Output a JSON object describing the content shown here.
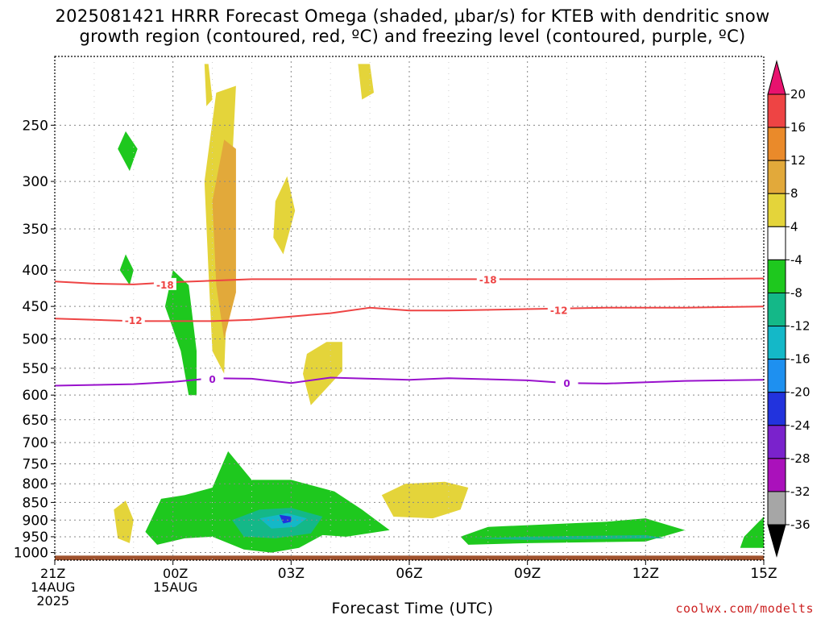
{
  "title": {
    "line1": "2025081421 HRRR Forecast Omega (shaded, μbar/s) for KTEB with dendritic snow",
    "line2": "growth region (contoured, red, ºC) and freezing level (contoured, purple, ºC)"
  },
  "xlabel": "Forecast Time (UTC)",
  "credit": "coolwx.com/modelts",
  "x_date_labels": {
    "start_time": "21Z",
    "start_date": "14AUG",
    "start_year": "2025",
    "midnight_time": "00Z",
    "midnight_date": "15AUG"
  },
  "colors": {
    "dendritic_contour": "#ee4444",
    "freezing_contour": "#9911cc",
    "ground": "#a0522d",
    "grid": "#888888"
  },
  "colorbar": {
    "labels": [
      "20",
      "16",
      "12",
      "8",
      "4",
      "-4",
      "-8",
      "-12",
      "-16",
      "-20",
      "-24",
      "-28",
      "-32",
      "-36"
    ],
    "colors": [
      "#e8126e",
      "#ee4444",
      "#ea8a2a",
      "#e2a93a",
      "#e4d43a",
      "#ffffff",
      "#1ec81e",
      "#14b888",
      "#14b8c8",
      "#1e90f0",
      "#2233dd",
      "#7a22cc",
      "#aa11bb",
      "#a6a6a6",
      "#000000"
    ]
  },
  "chart_data": {
    "type": "heatmap",
    "title": "2025081421 HRRR Forecast Omega (shaded, μbar/s) for KTEB with dendritic snow growth region (contoured, red, ºC) and freezing level (contoured, purple, ºC)",
    "xlabel": "Forecast Time (UTC)",
    "ylabel": "",
    "x_ticks": [
      "21Z",
      "00Z",
      "03Z",
      "06Z",
      "09Z",
      "12Z",
      "15Z"
    ],
    "x_range_hours": [
      0,
      18
    ],
    "y_ticks": [
      250,
      300,
      350,
      400,
      450,
      500,
      550,
      600,
      650,
      700,
      750,
      800,
      850,
      900,
      950,
      1000
    ],
    "y_range_hPa": [
      200,
      1025
    ],
    "y_scale": "log",
    "grid": true,
    "colorbar_levels": [
      -36,
      -32,
      -28,
      -24,
      -20,
      -16,
      -12,
      -8,
      -4,
      4,
      8,
      12,
      16,
      20
    ],
    "contours": [
      {
        "name": "-18",
        "color": "#ee4444",
        "label": "-18",
        "points": [
          [
            0,
            415
          ],
          [
            1,
            418
          ],
          [
            2,
            419
          ],
          [
            3,
            416
          ],
          [
            4,
            414
          ],
          [
            5,
            412
          ],
          [
            6,
            412
          ],
          [
            8,
            412
          ],
          [
            10,
            412
          ],
          [
            12,
            412
          ],
          [
            15,
            412
          ],
          [
            18,
            411
          ]
        ]
      },
      {
        "name": "-12",
        "color": "#ee4444",
        "label": "-12",
        "points": [
          [
            0,
            468
          ],
          [
            1,
            470
          ],
          [
            2,
            472
          ],
          [
            3,
            472
          ],
          [
            4,
            472
          ],
          [
            5,
            470
          ],
          [
            6,
            465
          ],
          [
            7,
            460
          ],
          [
            8,
            452
          ],
          [
            9,
            456
          ],
          [
            10,
            456
          ],
          [
            12,
            454
          ],
          [
            14,
            452
          ],
          [
            16,
            452
          ],
          [
            18,
            450
          ]
        ]
      },
      {
        "name": "0",
        "color": "#9911cc",
        "label": "0",
        "points": [
          [
            0,
            582
          ],
          [
            2,
            579
          ],
          [
            3,
            575
          ],
          [
            4,
            568
          ],
          [
            5,
            569
          ],
          [
            6,
            577
          ],
          [
            7,
            567
          ],
          [
            8,
            569
          ],
          [
            9,
            571
          ],
          [
            10,
            568
          ],
          [
            12,
            572
          ],
          [
            13,
            577
          ],
          [
            14,
            578
          ],
          [
            16,
            573
          ],
          [
            18,
            571
          ]
        ]
      }
    ],
    "omega_regions": [
      {
        "level": "4",
        "color": "#e4d43a",
        "points": [
          [
            3.8,
            300
          ],
          [
            4.1,
            225
          ],
          [
            4.6,
            220
          ],
          [
            4.5,
            285
          ],
          [
            4.3,
            560
          ],
          [
            4.0,
            520
          ],
          [
            3.9,
            400
          ]
        ]
      },
      {
        "level": "12",
        "color": "#e2a93a",
        "points": [
          [
            4.0,
            320
          ],
          [
            4.3,
            262
          ],
          [
            4.6,
            270
          ],
          [
            4.6,
            430
          ],
          [
            4.3,
            500
          ],
          [
            4.1,
            420
          ]
        ]
      },
      {
        "level": "4",
        "color": "#e4d43a",
        "points": [
          [
            5.6,
            320
          ],
          [
            5.9,
            295
          ],
          [
            6.1,
            330
          ],
          [
            5.8,
            380
          ],
          [
            5.55,
            360
          ]
        ]
      },
      {
        "level": "4",
        "color": "#e4d43a",
        "points": [
          [
            3.8,
            205
          ],
          [
            3.9,
            205
          ],
          [
            4.0,
            230
          ],
          [
            3.85,
            235
          ]
        ]
      },
      {
        "level": "4",
        "color": "#e4d43a",
        "points": [
          [
            7.7,
            205
          ],
          [
            8.0,
            205
          ],
          [
            8.1,
            225
          ],
          [
            7.8,
            230
          ]
        ]
      },
      {
        "level": "4",
        "color": "#e4d43a",
        "points": [
          [
            6.4,
            525
          ],
          [
            6.9,
            505
          ],
          [
            7.3,
            505
          ],
          [
            7.3,
            555
          ],
          [
            6.8,
            595
          ],
          [
            6.5,
            620
          ],
          [
            6.3,
            560
          ]
        ]
      },
      {
        "level": "4",
        "color": "#e4d43a",
        "points": [
          [
            8.3,
            830
          ],
          [
            8.9,
            800
          ],
          [
            9.9,
            795
          ],
          [
            10.5,
            810
          ],
          [
            10.3,
            870
          ],
          [
            9.6,
            895
          ],
          [
            8.6,
            890
          ]
        ]
      },
      {
        "level": "4",
        "color": "#e4d43a",
        "points": [
          [
            1.5,
            870
          ],
          [
            1.8,
            845
          ],
          [
            2.0,
            900
          ],
          [
            1.9,
            970
          ],
          [
            1.6,
            955
          ]
        ]
      },
      {
        "level": "-4",
        "color": "#1ec81e",
        "points": [
          [
            2.3,
            935
          ],
          [
            2.7,
            840
          ],
          [
            3.3,
            830
          ],
          [
            4.0,
            810
          ],
          [
            4.4,
            720
          ],
          [
            5.0,
            790
          ],
          [
            6.0,
            790
          ],
          [
            7.1,
            820
          ],
          [
            7.8,
            870
          ],
          [
            8.5,
            930
          ],
          [
            7.4,
            950
          ],
          [
            6.8,
            945
          ],
          [
            6.2,
            985
          ],
          [
            5.5,
            1000
          ],
          [
            4.8,
            990
          ],
          [
            4.0,
            950
          ],
          [
            3.3,
            955
          ],
          [
            2.6,
            975
          ]
        ]
      },
      {
        "level": "-8",
        "color": "#14b888",
        "points": [
          [
            4.5,
            900
          ],
          [
            5.2,
            870
          ],
          [
            6.0,
            865
          ],
          [
            6.8,
            890
          ],
          [
            6.5,
            940
          ],
          [
            5.6,
            955
          ],
          [
            4.8,
            950
          ]
        ]
      },
      {
        "level": "-12",
        "color": "#14b8c8",
        "points": [
          [
            5.2,
            895
          ],
          [
            5.9,
            880
          ],
          [
            6.4,
            895
          ],
          [
            6.1,
            920
          ],
          [
            5.5,
            925
          ]
        ]
      },
      {
        "level": "-20",
        "color": "#2233dd",
        "points": [
          [
            5.7,
            885
          ],
          [
            6.0,
            890
          ],
          [
            6.0,
            905
          ],
          [
            5.8,
            910
          ]
        ]
      },
      {
        "level": "-4",
        "color": "#1ec81e",
        "points": [
          [
            3.0,
            400
          ],
          [
            3.4,
            420
          ],
          [
            3.6,
            520
          ],
          [
            3.6,
            600
          ],
          [
            3.4,
            600
          ],
          [
            3.2,
            520
          ],
          [
            2.8,
            450
          ]
        ]
      },
      {
        "level": "-4",
        "color": "#1ec81e",
        "points": [
          [
            10.3,
            950
          ],
          [
            11.0,
            920
          ],
          [
            14.0,
            905
          ],
          [
            15.0,
            895
          ],
          [
            16.0,
            930
          ],
          [
            15.0,
            965
          ],
          [
            12.0,
            970
          ],
          [
            10.5,
            975
          ]
        ]
      },
      {
        "level": "-8",
        "color": "#14b888",
        "points": [
          [
            10.6,
            955
          ],
          [
            12.0,
            950
          ],
          [
            15.0,
            945
          ],
          [
            15.5,
            955
          ],
          [
            12.0,
            960
          ]
        ]
      },
      {
        "level": "-4",
        "color": "#1ec81e",
        "points": [
          [
            17.5,
            950
          ],
          [
            18.0,
            890
          ],
          [
            18.0,
            985
          ],
          [
            17.4,
            985
          ]
        ]
      },
      {
        "level": "-4",
        "color": "#1ec81e",
        "points": [
          [
            1.8,
            255
          ],
          [
            2.1,
            270
          ],
          [
            1.9,
            290
          ],
          [
            1.6,
            270
          ]
        ]
      },
      {
        "level": "-4",
        "color": "#1ec81e",
        "points": [
          [
            1.8,
            380
          ],
          [
            2.0,
            400
          ],
          [
            1.9,
            420
          ],
          [
            1.65,
            400
          ]
        ]
      }
    ]
  }
}
